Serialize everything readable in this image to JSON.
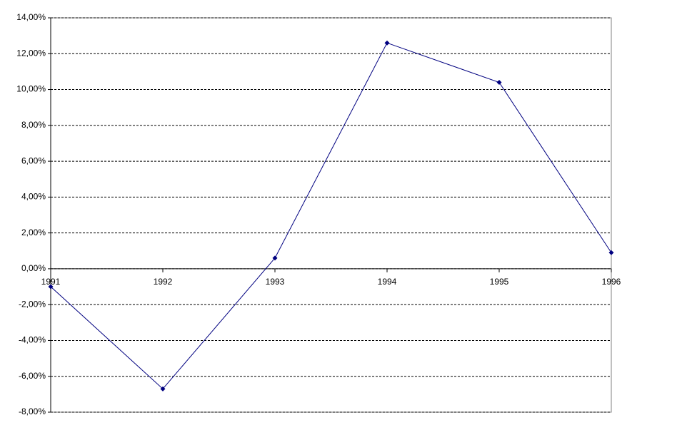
{
  "chart_data": {
    "type": "line",
    "x": [
      1991,
      1992,
      1993,
      1994,
      1995,
      1996
    ],
    "series": [
      {
        "color": "#000080",
        "values": [
          -1.0,
          -6.7,
          0.6,
          12.6,
          10.4,
          0.9
        ]
      }
    ],
    "xlim": [
      1991,
      1996
    ],
    "xticks": [
      1991,
      1992,
      1993,
      1994,
      1995,
      1996
    ],
    "ylim": [
      -8,
      14
    ],
    "yticks": [
      {
        "value": -8,
        "label": "-8,00%"
      },
      {
        "value": -6,
        "label": "-6,00%"
      },
      {
        "value": -4,
        "label": "-4,00%"
      },
      {
        "value": -2,
        "label": "-2,00%"
      },
      {
        "value": 0,
        "label": "0,00%"
      },
      {
        "value": 2,
        "label": "2,00%"
      },
      {
        "value": 4,
        "label": "4,00%"
      },
      {
        "value": 6,
        "label": "6,00%"
      },
      {
        "value": 8,
        "label": "8,00%"
      },
      {
        "value": 10,
        "label": "10,00%"
      },
      {
        "value": 12,
        "label": "12,00%"
      },
      {
        "value": 14,
        "label": "14,00%"
      }
    ],
    "grid": true
  }
}
